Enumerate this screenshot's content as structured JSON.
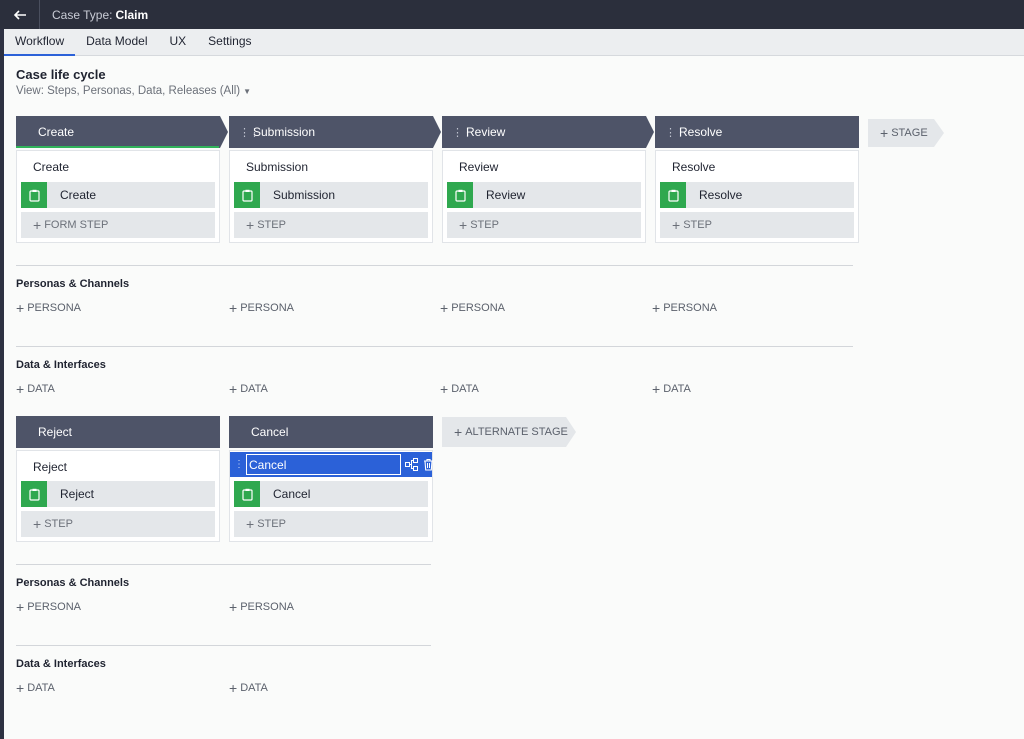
{
  "topbar": {
    "case_type_label": "Case Type:",
    "case_type_value": "Claim"
  },
  "tabs": [
    {
      "label": "Workflow",
      "active": true
    },
    {
      "label": "Data Model"
    },
    {
      "label": "UX"
    },
    {
      "label": "Settings"
    }
  ],
  "page": {
    "title": "Case life cycle",
    "view_label": "View: Steps, Personas, Data, Releases (All)"
  },
  "stages": [
    {
      "name": "Create",
      "process": "Create",
      "step": "Create",
      "add_step": "FORM STEP"
    },
    {
      "name": "Submission",
      "process": "Submission",
      "step": "Submission",
      "add_step": "STEP"
    },
    {
      "name": "Review",
      "process": "Review",
      "step": "Review",
      "add_step": "STEP"
    },
    {
      "name": "Resolve",
      "process": "Resolve",
      "step": "Resolve",
      "add_step": "STEP"
    }
  ],
  "add_stage_label": "STAGE",
  "sections": {
    "personas_title": "Personas & Channels",
    "persona_label": "PERSONA",
    "data_title": "Data & Interfaces",
    "data_label": "DATA"
  },
  "alt_stages": [
    {
      "name": "Reject",
      "process": "Reject",
      "step": "Reject",
      "add_step": "STEP"
    },
    {
      "name": "Cancel",
      "process_edit_value": "Cancel",
      "step": "Cancel",
      "add_step": "STEP"
    }
  ],
  "add_alt_stage_label": "ALTERNATE STAGE",
  "colors": {
    "stage_header": "#4e5468",
    "step_icon": "#2fa84f",
    "selection": "#2b61d8"
  }
}
